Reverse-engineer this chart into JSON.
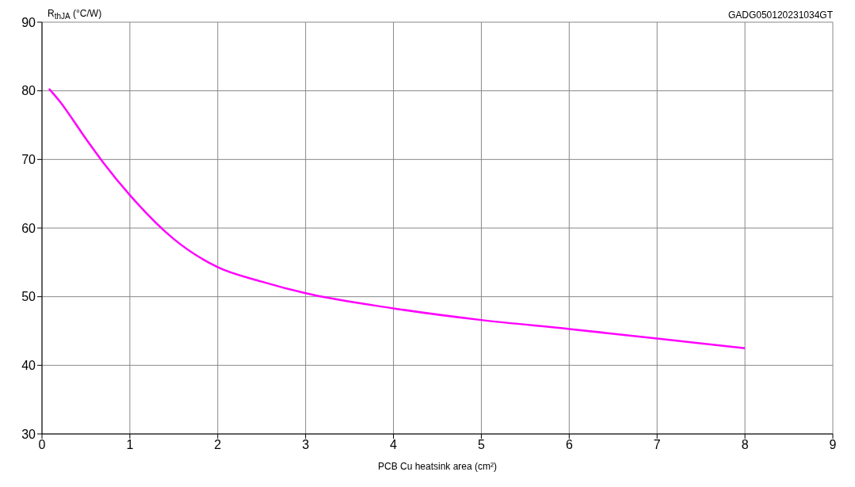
{
  "chart_data": {
    "type": "line",
    "xlabel": "PCB Cu heatsink area (cm²)",
    "ylabel": "R$_{thJA}$ (°C/W)",
    "annotations": [
      "GADG050120231034GT"
    ],
    "x": [
      0.08,
      0.2,
      0.5,
      0.7,
      1.0,
      1.5,
      2.0,
      2.5,
      3.0,
      4.0,
      5.0,
      6.0,
      7.0,
      8.0
    ],
    "series": [
      {
        "color": "#ff00ff",
        "values": [
          80.3,
          78.5,
          73,
          69.5,
          64.8,
          58.4,
          54.3,
          52.2,
          50.5,
          48.3,
          46.6,
          45.3,
          43.9,
          42.5
        ]
      }
    ],
    "xlim": [
      0,
      9
    ],
    "xticks": [
      0,
      1,
      2,
      3,
      4,
      5,
      6,
      7,
      8,
      9
    ],
    "ylim": [
      30,
      90
    ],
    "yticks": [
      30,
      40,
      50,
      60,
      70,
      80,
      90
    ],
    "grid": true,
    "marker": "none",
    "line_style": "solid"
  }
}
